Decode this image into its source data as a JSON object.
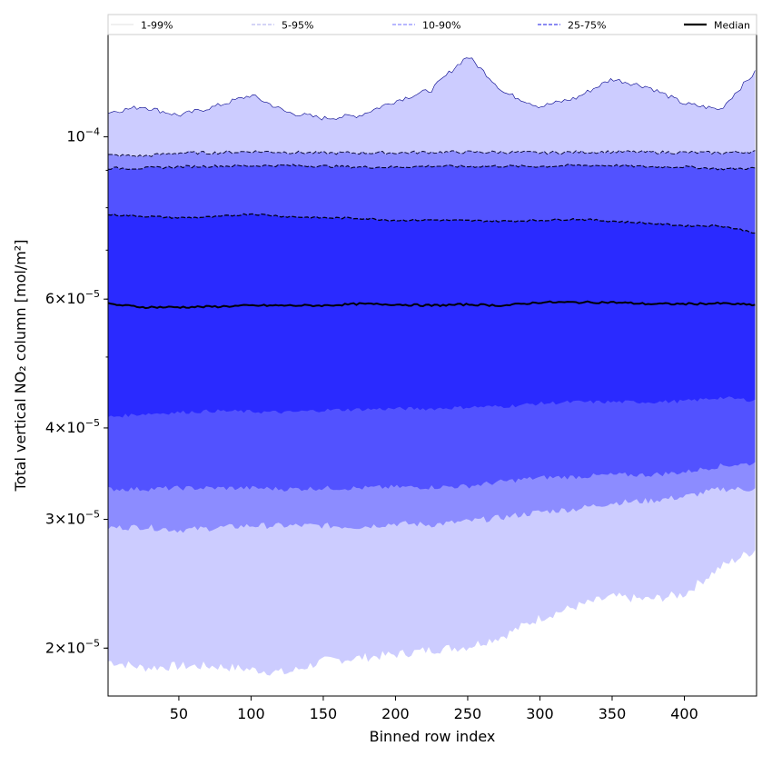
{
  "chart_data": {
    "type": "area",
    "title": "",
    "xlabel": "Binned row index",
    "ylabel": "Total vertical NO₂ column [mol/m²]",
    "y_scale": "log",
    "xlim": [
      1,
      450
    ],
    "ylim": [
      1.72e-05,
      0.000138
    ],
    "grid": false,
    "legend_position": "top",
    "x_ticks": [
      50,
      100,
      150,
      200,
      250,
      300,
      350,
      400
    ],
    "x_tick_labels": [
      "50",
      "100",
      "150",
      "200",
      "250",
      "300",
      "350",
      "400"
    ],
    "y_ticks": [
      2e-05,
      3e-05,
      4e-05,
      6e-05,
      0.0001
    ],
    "y_tick_labels": [
      {
        "mantissa": "2",
        "exponent": "−5"
      },
      {
        "mantissa": "3",
        "exponent": "−5"
      },
      {
        "mantissa": "4",
        "exponent": "−5"
      },
      {
        "mantissa": "6",
        "exponent": "−5"
      },
      {
        "mantissa": "",
        "exponent": "−4"
      }
    ],
    "legend": [
      "1-99%",
      "5-95%",
      "10-90%",
      "25-75%",
      "Median"
    ],
    "colors": {
      "band_1_99": "#ccccff",
      "band_5_95": "#8c8cff",
      "band_10_90": "#5252ff",
      "band_25_75": "#2a2aff",
      "median": "#000000",
      "p99_line": "#00008b",
      "legend_1_99": "#d9d9d9",
      "legend_5_95": "#aaaaee",
      "legend_10_90": "#8c8cff",
      "legend_25_75": "#6464ee"
    },
    "x": [
      1,
      25,
      50,
      75,
      100,
      125,
      150,
      175,
      200,
      225,
      250,
      275,
      300,
      325,
      350,
      375,
      400,
      425,
      450
    ],
    "series": [
      {
        "name": "1-99%",
        "kind": "lower",
        "values": [
          1.92e-05,
          1.88e-05,
          1.89e-05,
          1.89e-05,
          1.87e-05,
          1.85e-05,
          1.92e-05,
          1.94e-05,
          1.96e-05,
          1.99e-05,
          2.01e-05,
          2.08e-05,
          2.2e-05,
          2.28e-05,
          2.35e-05,
          2.33e-05,
          2.37e-05,
          2.58e-05,
          2.73e-05
        ]
      },
      {
        "name": "1-99%",
        "kind": "upper",
        "values": [
          0.000108,
          0.00011,
          0.000107,
          0.00011,
          0.000114,
          0.000108,
          0.000106,
          0.000107,
          0.000112,
          0.000116,
          0.000129,
          0.000115,
          0.00011,
          0.000113,
          0.00012,
          0.000117,
          0.000111,
          0.000109,
          0.000123
        ]
      },
      {
        "name": "5-95%",
        "kind": "lower",
        "values": [
          2.92e-05,
          2.93e-05,
          2.9e-05,
          2.92e-05,
          2.94e-05,
          2.94e-05,
          2.94e-05,
          2.93e-05,
          2.96e-05,
          2.95e-05,
          2.98e-05,
          3.02e-05,
          3.07e-05,
          3.1e-05,
          3.16e-05,
          3.18e-05,
          3.22e-05,
          3.3e-05,
          3.3e-05
        ]
      },
      {
        "name": "5-95%",
        "kind": "upper",
        "values": [
          9.44e-05,
          9.41e-05,
          9.51e-05,
          9.51e-05,
          9.55e-05,
          9.53e-05,
          9.5e-05,
          9.51e-05,
          9.51e-05,
          9.53e-05,
          9.53e-05,
          9.53e-05,
          9.51e-05,
          9.53e-05,
          9.54e-05,
          9.53e-05,
          9.52e-05,
          9.51e-05,
          9.55e-05
        ]
      },
      {
        "name": "10-90%",
        "kind": "lower",
        "values": [
          3.3e-05,
          3.3e-05,
          3.31e-05,
          3.31e-05,
          3.31e-05,
          3.3e-05,
          3.31e-05,
          3.31e-05,
          3.32e-05,
          3.32e-05,
          3.33e-05,
          3.38e-05,
          3.42e-05,
          3.43e-05,
          3.45e-05,
          3.45e-05,
          3.48e-05,
          3.55e-05,
          3.58e-05
        ]
      },
      {
        "name": "10-90%",
        "kind": "upper",
        "values": [
          9.06e-05,
          9.06e-05,
          9.1e-05,
          9.12e-05,
          9.13e-05,
          9.14e-05,
          9.12e-05,
          9.09e-05,
          9.09e-05,
          9.12e-05,
          9.11e-05,
          9.12e-05,
          9.11e-05,
          9.14e-05,
          9.14e-05,
          9.1e-05,
          9.1e-05,
          9.04e-05,
          9.06e-05
        ]
      },
      {
        "name": "25-75%",
        "kind": "lower",
        "values": [
          4.14e-05,
          4.18e-05,
          4.2e-05,
          4.22e-05,
          4.21e-05,
          4.2e-05,
          4.23e-05,
          4.24e-05,
          4.25e-05,
          4.25e-05,
          4.27e-05,
          4.28e-05,
          4.32e-05,
          4.34e-05,
          4.34e-05,
          4.34e-05,
          4.35e-05,
          4.4e-05,
          4.36e-05
        ]
      },
      {
        "name": "25-75%",
        "kind": "upper",
        "values": [
          7.83e-05,
          7.79e-05,
          7.75e-05,
          7.77e-05,
          7.85e-05,
          7.78e-05,
          7.75e-05,
          7.74e-05,
          7.69e-05,
          7.7e-05,
          7.68e-05,
          7.67e-05,
          7.69e-05,
          7.72e-05,
          7.67e-05,
          7.62e-05,
          7.56e-05,
          7.56e-05,
          7.39e-05
        ]
      },
      {
        "name": "Median",
        "kind": "line",
        "values": [
          5.91e-05,
          5.85e-05,
          5.85e-05,
          5.86e-05,
          5.88e-05,
          5.88e-05,
          5.88e-05,
          5.91e-05,
          5.9e-05,
          5.88e-05,
          5.9e-05,
          5.88e-05,
          5.94e-05,
          5.94e-05,
          5.94e-05,
          5.91e-05,
          5.91e-05,
          5.92e-05,
          5.89e-05
        ]
      }
    ]
  }
}
